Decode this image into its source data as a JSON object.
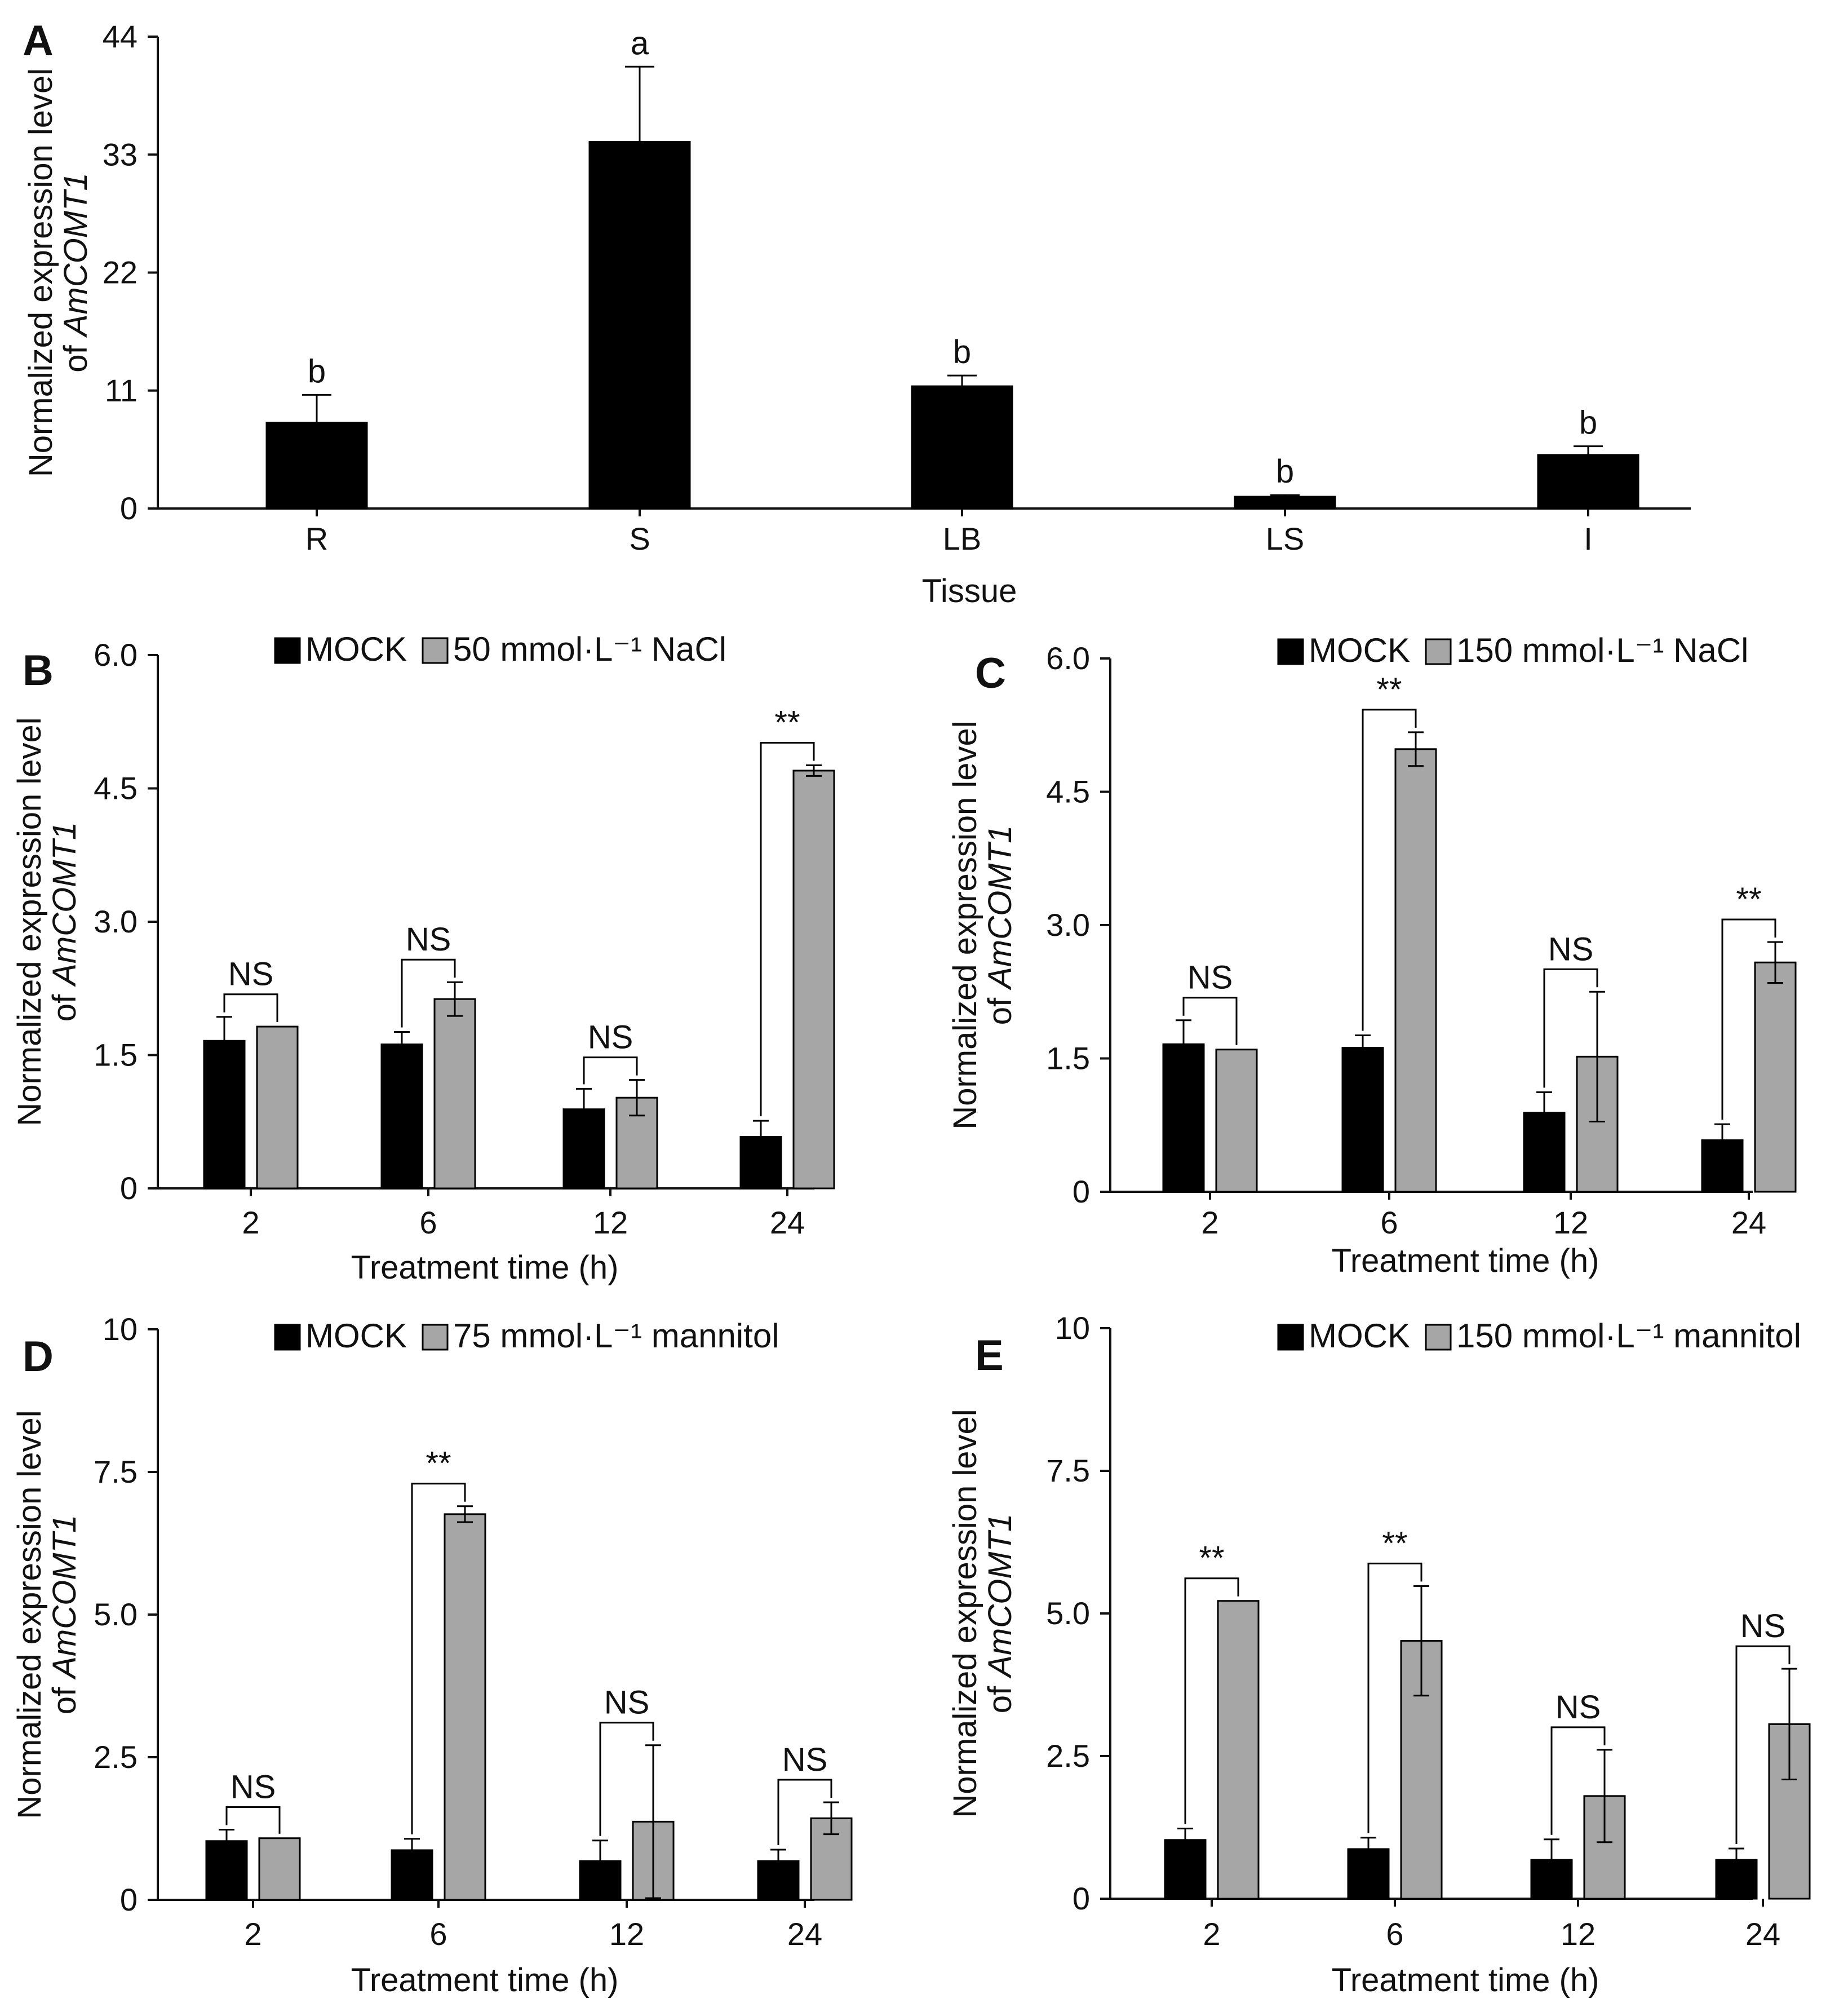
{
  "colors": {
    "mock": "#000000",
    "treatment": "#a6a6a6",
    "axis": "#111111"
  },
  "chart_data": [
    {
      "id": "A",
      "panel_label": "A",
      "type": "bar",
      "title": "",
      "xlabel": "Tissue",
      "ylabel_line1": "Normalized expression level",
      "ylabel_line2_prefix": "of ",
      "ylabel_line2_italic": "AmCOMT1",
      "ylim": [
        0,
        44
      ],
      "yticks": [
        "0",
        "11",
        "22",
        "33",
        "44"
      ],
      "categories": [
        "R",
        "S",
        "LB",
        "LS",
        "I"
      ],
      "series": [
        {
          "values": [
            8.0,
            34.2,
            11.4,
            1.1,
            5.0
          ],
          "errors": [
            2.6,
            7.0,
            1.0,
            0.15,
            0.8
          ],
          "color": "#000000"
        }
      ],
      "letters": [
        "b",
        "a",
        "b",
        "b",
        "b"
      ],
      "grid": false
    },
    {
      "id": "B",
      "panel_label": "B",
      "type": "bar",
      "title": "",
      "xlabel": "Treatment time (h)",
      "ylabel_line1": "Normalized expression level",
      "ylabel_line2_prefix": "of ",
      "ylabel_line2_italic": "AmCOMT1",
      "ylim": [
        0,
        6
      ],
      "yticks": [
        "0",
        "1.5",
        "3.0",
        "4.5",
        "6.0"
      ],
      "categories": [
        "2",
        "6",
        "12",
        "24"
      ],
      "series": [
        {
          "name": "MOCK",
          "values": [
            1.66,
            1.62,
            0.89,
            0.58
          ],
          "errors": [
            0.27,
            0.14,
            0.23,
            0.18
          ],
          "color": "#000000"
        },
        {
          "name": "50 mmol·L⁻¹ NaCl",
          "values": [
            1.82,
            2.13,
            1.02,
            4.7
          ],
          "errors": [
            0.0,
            0.19,
            0.2,
            0.06
          ],
          "color": "#a6a6a6"
        }
      ],
      "significance": [
        "NS",
        "NS",
        "NS",
        "**"
      ],
      "legend": "top",
      "grid": false
    },
    {
      "id": "C",
      "panel_label": "C",
      "type": "bar",
      "title": "",
      "xlabel": "Treatment time (h)",
      "ylabel_line1": "Normalized expression level",
      "ylabel_line2_prefix": "of ",
      "ylabel_line2_italic": "AmCOMT1",
      "ylim": [
        0,
        6
      ],
      "yticks": [
        "0",
        "1.5",
        "3.0",
        "4.5",
        "6.0"
      ],
      "categories": [
        "2",
        "6",
        "12",
        "24"
      ],
      "series": [
        {
          "name": "MOCK",
          "values": [
            1.66,
            1.62,
            0.89,
            0.58
          ],
          "errors": [
            0.27,
            0.14,
            0.23,
            0.18
          ],
          "color": "#000000"
        },
        {
          "name": "150 mmol·L⁻¹ NaCl",
          "values": [
            1.6,
            4.98,
            1.52,
            2.58
          ],
          "errors": [
            0.0,
            0.19,
            0.73,
            0.23
          ],
          "color": "#a6a6a6"
        }
      ],
      "significance": [
        "NS",
        "**",
        "NS",
        "**"
      ],
      "legend": "top",
      "grid": false
    },
    {
      "id": "D",
      "panel_label": "D",
      "type": "bar",
      "title": "",
      "xlabel": "Treatment time (h)",
      "ylabel_line1": "Normalized expression level",
      "ylabel_line2_prefix": "of ",
      "ylabel_line2_italic": "AmCOMT1",
      "ylim": [
        0,
        10
      ],
      "yticks": [
        "0",
        "2.5",
        "5.0",
        "7.5",
        "10"
      ],
      "categories": [
        "2",
        "6",
        "12",
        "24"
      ],
      "series": [
        {
          "name": "MOCK",
          "values": [
            1.03,
            0.87,
            0.68,
            0.68
          ],
          "errors": [
            0.2,
            0.2,
            0.36,
            0.2
          ],
          "color": "#000000"
        },
        {
          "name": "75 mmol·L⁻¹ mannitol",
          "values": [
            1.08,
            6.76,
            1.37,
            1.43
          ],
          "errors": [
            0.0,
            0.14,
            1.34,
            0.28
          ],
          "color": "#a6a6a6"
        }
      ],
      "significance": [
        "NS",
        "**",
        "NS",
        "NS"
      ],
      "legend": "top",
      "grid": false
    },
    {
      "id": "E",
      "panel_label": "E",
      "type": "bar",
      "title": "",
      "xlabel": "Treatment time (h)",
      "ylabel_line1": "Normalized expression level",
      "ylabel_line2_prefix": "of ",
      "ylabel_line2_italic": "AmCOMT1",
      "ylim": [
        0,
        10
      ],
      "yticks": [
        "0",
        "2.5",
        "5.0",
        "7.5",
        "10"
      ],
      "categories": [
        "2",
        "6",
        "12",
        "24"
      ],
      "series": [
        {
          "name": "MOCK",
          "values": [
            1.03,
            0.87,
            0.68,
            0.68
          ],
          "errors": [
            0.2,
            0.2,
            0.36,
            0.2
          ],
          "color": "#000000"
        },
        {
          "name": "150 mmol·L⁻¹ mannitol",
          "values": [
            5.22,
            4.52,
            1.8,
            3.06
          ],
          "errors": [
            0.0,
            0.96,
            0.81,
            0.97
          ],
          "color": "#a6a6a6"
        }
      ],
      "significance": [
        "**",
        "**",
        "NS",
        "NS"
      ],
      "legend": "top",
      "grid": false
    }
  ]
}
